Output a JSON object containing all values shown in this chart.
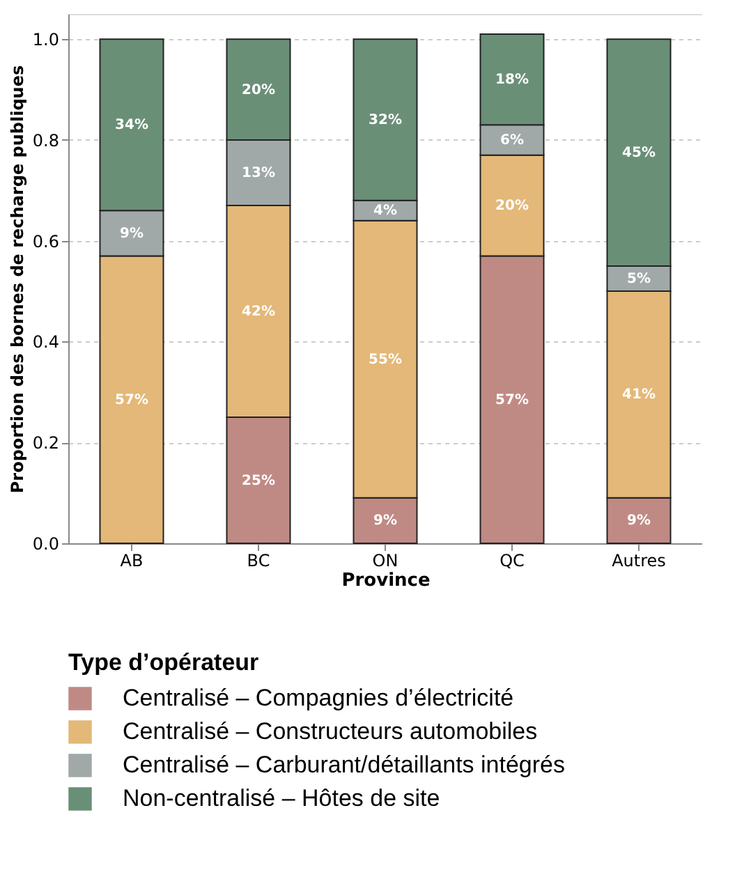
{
  "chart_data": {
    "type": "bar",
    "stacked": true,
    "xlabel": "Province",
    "ylabel": "Proportion des bornes de recharge publiques",
    "legend_title": "Type d’opérateur",
    "legend": "bottom",
    "grid": "y",
    "categories": [
      "AB",
      "BC",
      "ON",
      "QC",
      "Autres"
    ],
    "ylim": [
      0,
      1.05
    ],
    "yticks": [
      {
        "value": 0,
        "label": "0.0"
      },
      0.2,
      0.4,
      0.6,
      0.8,
      {
        "value": 1,
        "label": "1.0"
      }
    ],
    "series": [
      {
        "name": "Centralisé – Compagnies d’électricité",
        "color": "#c08a84",
        "values": [
          0,
          0.25,
          0.09,
          0.57,
          0.09
        ],
        "value_labels": [
          null,
          "25%",
          "9%",
          "57%",
          "9%"
        ]
      },
      {
        "name": "Centralisé – Constructeurs automobiles",
        "color": "#e3b878",
        "values": [
          0.57,
          0.42,
          0.55,
          0.2,
          0.41
        ],
        "value_labels": [
          "57%",
          "42%",
          "55%",
          "20%",
          "41%"
        ]
      },
      {
        "name": "Centralisé – Carburant/détaillants intégrés",
        "color": "#a0a9a8",
        "values": [
          0.09,
          0.13,
          0.04,
          0.06,
          0.05
        ],
        "value_labels": [
          "9%",
          "13%",
          "4%",
          "6%",
          "5%"
        ]
      },
      {
        "name": "Non-centralisé – Hôtes de site",
        "color": "#6a8f77",
        "values": [
          0.34,
          0.2,
          0.32,
          0.18,
          0.45
        ],
        "value_labels": [
          "34%",
          "20%",
          "32%",
          "18%",
          "45%"
        ]
      }
    ]
  }
}
